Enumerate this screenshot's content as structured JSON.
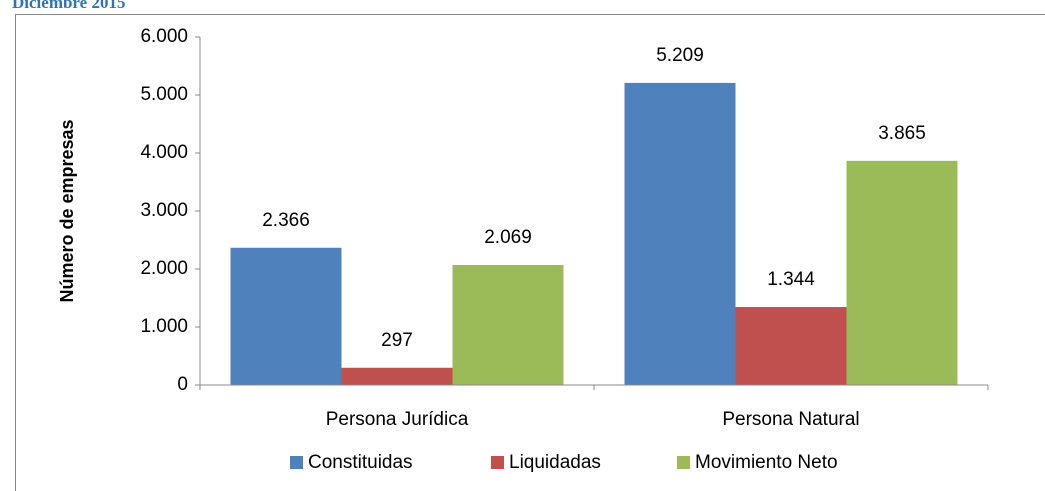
{
  "chart_data": {
    "type": "bar",
    "subtitle": "Diciembre 2015",
    "y_label": "Número de empresas",
    "categories": [
      "Persona Jurídica",
      "Persona Natural"
    ],
    "series": [
      {
        "name": "Constituidas",
        "color": "#4f81bd",
        "values": [
          2366,
          5209
        ],
        "value_labels": [
          "2.366",
          "5.209"
        ]
      },
      {
        "name": "Liquidadas",
        "color": "#c0504d",
        "values": [
          297,
          1344
        ],
        "value_labels": [
          "297",
          "1.344"
        ]
      },
      {
        "name": "Movimiento Neto",
        "color": "#9bbb59",
        "values": [
          2069,
          3865
        ],
        "value_labels": [
          "2.069",
          "3.865"
        ]
      }
    ],
    "ylim": [
      0,
      6000
    ],
    "yticks": [
      0,
      {
        "value": 1000,
        "label": "1.000"
      },
      {
        "value": 2000,
        "label": "2.000"
      },
      {
        "value": 3000,
        "label": "3.000"
      },
      {
        "value": 4000,
        "label": "4.000"
      },
      {
        "value": 5000,
        "label": "5.000"
      },
      {
        "value": 6000,
        "label": "6.000"
      }
    ],
    "legend": "bottom"
  }
}
